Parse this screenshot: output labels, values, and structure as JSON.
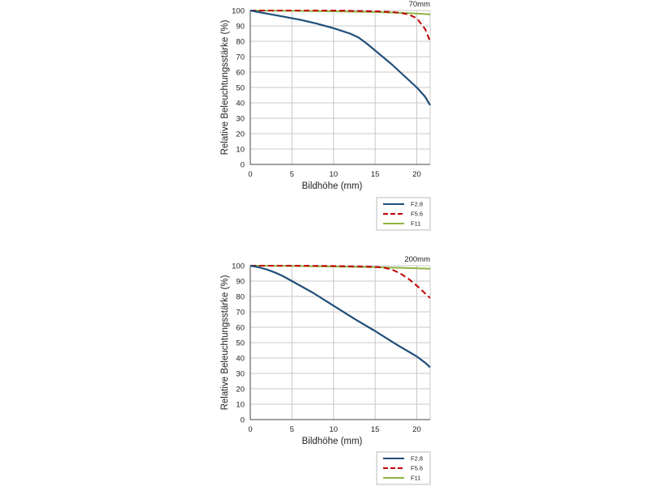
{
  "colors": {
    "F2.8": "#1f4e79",
    "F5.6": "#c00000",
    "F11": "#8db543",
    "grid": "#c8c8c8",
    "axis": "#444444"
  },
  "chart_data": [
    {
      "type": "line",
      "title": "70mm",
      "xlabel": "Bildhöhe (mm)",
      "ylabel": "Relative Beleuchtungsstärke (%)",
      "xlim": [
        0,
        21.6
      ],
      "ylim": [
        0,
        100
      ],
      "xticks": [
        "0",
        "5",
        "10",
        "15",
        "20"
      ],
      "yticks": [
        "0",
        "10",
        "20",
        "30",
        "40",
        "50",
        "60",
        "70",
        "80",
        "90",
        "100"
      ],
      "grid": true,
      "legend_position": "below-right",
      "series": [
        {
          "name": "F2.8",
          "style": "solid",
          "x": [
            0,
            2,
            4,
            6,
            8,
            10,
            12,
            13,
            14,
            15,
            16,
            17,
            18,
            19,
            20,
            21,
            21.6
          ],
          "y": [
            100,
            98,
            96,
            94,
            91.5,
            88.5,
            85,
            82.5,
            78.5,
            74,
            69.5,
            65,
            60,
            55,
            50,
            44,
            38.5
          ]
        },
        {
          "name": "F5.6",
          "style": "dashed",
          "x": [
            0,
            5,
            10,
            15,
            17,
            18,
            19,
            20,
            21,
            21.6
          ],
          "y": [
            100,
            100,
            100,
            99.5,
            99,
            98.5,
            97.5,
            95,
            88,
            80
          ]
        },
        {
          "name": "F11",
          "style": "solid",
          "x": [
            0,
            5,
            10,
            15,
            18,
            20,
            21.6
          ],
          "y": [
            100,
            99.8,
            99.5,
            99,
            98.5,
            98,
            97.5
          ]
        }
      ]
    },
    {
      "type": "line",
      "title": "200mm",
      "xlabel": "Bildhöhe (mm)",
      "ylabel": "Relative Beleuchtungsstärke (%)",
      "xlim": [
        0,
        21.6
      ],
      "ylim": [
        0,
        100
      ],
      "xticks": [
        "0",
        "5",
        "10",
        "15",
        "20"
      ],
      "yticks": [
        "0",
        "10",
        "20",
        "30",
        "40",
        "50",
        "60",
        "70",
        "80",
        "90",
        "100"
      ],
      "grid": true,
      "legend_position": "below-right",
      "series": [
        {
          "name": "F2.8",
          "style": "solid",
          "x": [
            0,
            1,
            2,
            3,
            4,
            5,
            7.5,
            10,
            12.5,
            15,
            17.5,
            20,
            21,
            21.6
          ],
          "y": [
            100,
            99,
            97.5,
            95.5,
            93,
            90,
            82.5,
            74,
            65.5,
            57.5,
            49,
            41,
            37,
            34
          ]
        },
        {
          "name": "F5.6",
          "style": "dashed",
          "x": [
            0,
            5,
            10,
            15,
            16,
            17,
            18,
            19,
            20,
            21,
            21.6
          ],
          "y": [
            100,
            100,
            99.8,
            99.2,
            98.8,
            97.5,
            95,
            91.5,
            87,
            82,
            79
          ]
        },
        {
          "name": "F11",
          "style": "solid",
          "x": [
            0,
            5,
            10,
            15,
            18,
            20,
            21.6
          ],
          "y": [
            100,
            99.8,
            99.5,
            99,
            98.6,
            98.3,
            98
          ]
        }
      ]
    }
  ]
}
